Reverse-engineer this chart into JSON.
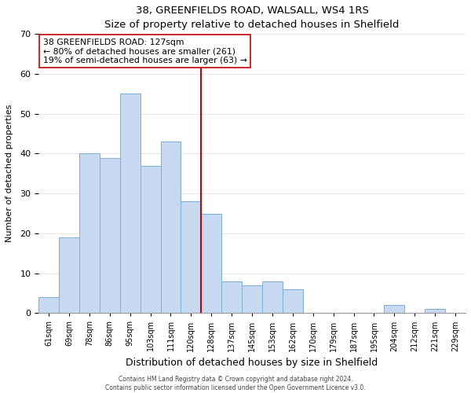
{
  "title": "38, GREENFIELDS ROAD, WALSALL, WS4 1RS",
  "subtitle": "Size of property relative to detached houses in Shelfield",
  "xlabel": "Distribution of detached houses by size in Shelfield",
  "ylabel": "Number of detached properties",
  "bar_labels": [
    "61sqm",
    "69sqm",
    "78sqm",
    "86sqm",
    "95sqm",
    "103sqm",
    "111sqm",
    "120sqm",
    "128sqm",
    "137sqm",
    "145sqm",
    "153sqm",
    "162sqm",
    "170sqm",
    "179sqm",
    "187sqm",
    "195sqm",
    "204sqm",
    "212sqm",
    "221sqm",
    "229sqm"
  ],
  "bar_values": [
    4,
    19,
    40,
    39,
    55,
    37,
    43,
    28,
    25,
    8,
    7,
    8,
    6,
    0,
    0,
    0,
    0,
    2,
    0,
    1,
    0
  ],
  "bar_color": "#c6d9f0",
  "bar_edge_color": "#7bafd4",
  "vline_color": "#cc0000",
  "annotation_title": "38 GREENFIELDS ROAD: 127sqm",
  "annotation_line1": "← 80% of detached houses are smaller (261)",
  "annotation_line2": "19% of semi-detached houses are larger (63) →",
  "annotation_box_color": "#ffffff",
  "annotation_box_edge": "#cc0000",
  "ylim": [
    0,
    70
  ],
  "footer1": "Contains HM Land Registry data © Crown copyright and database right 2024.",
  "footer2": "Contains public sector information licensed under the Open Government Licence v3.0."
}
